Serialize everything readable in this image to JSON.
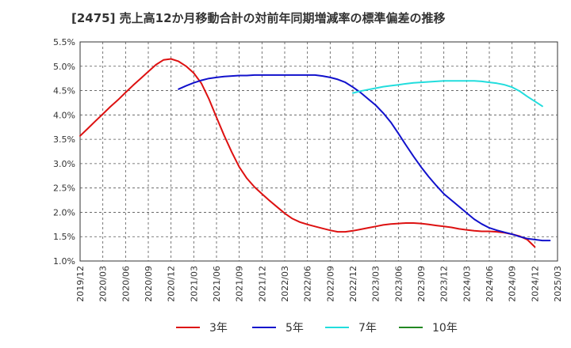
{
  "chart_data": {
    "type": "line",
    "title": "[2475]  売上高12か月移動合計の対前年同期増減率の標準偏差の推移",
    "xlabel": "",
    "ylabel": "",
    "x_ticks": [
      "2019/12",
      "2020/03",
      "2020/06",
      "2020/09",
      "2020/12",
      "2021/03",
      "2021/06",
      "2021/09",
      "2021/12",
      "2022/03",
      "2022/06",
      "2022/09",
      "2022/12",
      "2023/03",
      "2023/06",
      "2023/09",
      "2023/12",
      "2024/03",
      "2024/06",
      "2024/09",
      "2024/12",
      "2025/03"
    ],
    "y_ticks": [
      "1.0%",
      "1.5%",
      "2.0%",
      "2.5%",
      "3.0%",
      "3.5%",
      "4.0%",
      "4.5%",
      "5.0%",
      "5.5%"
    ],
    "ylim": [
      1.0,
      5.5
    ],
    "grid": true,
    "legend_position": "bottom",
    "series": [
      {
        "name": "3年",
        "color": "#dd1111",
        "points": [
          [
            "2019/12",
            3.57
          ],
          [
            "2020/01",
            3.72
          ],
          [
            "2020/02",
            3.87
          ],
          [
            "2020/03",
            4.02
          ],
          [
            "2020/04",
            4.17
          ],
          [
            "2020/05",
            4.31
          ],
          [
            "2020/06",
            4.46
          ],
          [
            "2020/07",
            4.61
          ],
          [
            "2020/08",
            4.75
          ],
          [
            "2020/09",
            4.89
          ],
          [
            "2020/10",
            5.03
          ],
          [
            "2020/11",
            5.13
          ],
          [
            "2020/12",
            5.15
          ],
          [
            "2021/01",
            5.1
          ],
          [
            "2021/02",
            5.0
          ],
          [
            "2021/03",
            4.86
          ],
          [
            "2021/04",
            4.65
          ],
          [
            "2021/05",
            4.33
          ],
          [
            "2021/06",
            3.95
          ],
          [
            "2021/07",
            3.58
          ],
          [
            "2021/08",
            3.24
          ],
          [
            "2021/09",
            2.93
          ],
          [
            "2021/10",
            2.7
          ],
          [
            "2021/11",
            2.52
          ],
          [
            "2021/12",
            2.38
          ],
          [
            "2022/01",
            2.24
          ],
          [
            "2022/02",
            2.11
          ],
          [
            "2022/03",
            1.98
          ],
          [
            "2022/04",
            1.87
          ],
          [
            "2022/05",
            1.8
          ],
          [
            "2022/06",
            1.75
          ],
          [
            "2022/07",
            1.71
          ],
          [
            "2022/08",
            1.67
          ],
          [
            "2022/09",
            1.63
          ],
          [
            "2022/10",
            1.6
          ],
          [
            "2022/11",
            1.6
          ],
          [
            "2022/12",
            1.62
          ],
          [
            "2023/01",
            1.65
          ],
          [
            "2023/02",
            1.68
          ],
          [
            "2023/03",
            1.71
          ],
          [
            "2023/04",
            1.74
          ],
          [
            "2023/05",
            1.76
          ],
          [
            "2023/06",
            1.77
          ],
          [
            "2023/07",
            1.78
          ],
          [
            "2023/08",
            1.78
          ],
          [
            "2023/09",
            1.77
          ],
          [
            "2023/10",
            1.75
          ],
          [
            "2023/11",
            1.73
          ],
          [
            "2023/12",
            1.71
          ],
          [
            "2024/01",
            1.69
          ],
          [
            "2024/02",
            1.66
          ],
          [
            "2024/03",
            1.64
          ],
          [
            "2024/04",
            1.62
          ],
          [
            "2024/05",
            1.61
          ],
          [
            "2024/06",
            1.61
          ],
          [
            "2024/07",
            1.6
          ],
          [
            "2024/08",
            1.58
          ],
          [
            "2024/09",
            1.55
          ],
          [
            "2024/10",
            1.51
          ],
          [
            "2024/11",
            1.44
          ],
          [
            "2024/12",
            1.29
          ]
        ]
      },
      {
        "name": "5年",
        "color": "#1111cc",
        "points": [
          [
            "2021/01",
            4.53
          ],
          [
            "2021/02",
            4.6
          ],
          [
            "2021/03",
            4.66
          ],
          [
            "2021/04",
            4.71
          ],
          [
            "2021/05",
            4.75
          ],
          [
            "2021/06",
            4.77
          ],
          [
            "2021/07",
            4.79
          ],
          [
            "2021/08",
            4.8
          ],
          [
            "2021/09",
            4.81
          ],
          [
            "2021/10",
            4.81
          ],
          [
            "2021/11",
            4.82
          ],
          [
            "2021/12",
            4.82
          ],
          [
            "2022/01",
            4.82
          ],
          [
            "2022/02",
            4.82
          ],
          [
            "2022/03",
            4.82
          ],
          [
            "2022/04",
            4.82
          ],
          [
            "2022/05",
            4.82
          ],
          [
            "2022/06",
            4.82
          ],
          [
            "2022/07",
            4.82
          ],
          [
            "2022/08",
            4.8
          ],
          [
            "2022/09",
            4.77
          ],
          [
            "2022/10",
            4.73
          ],
          [
            "2022/11",
            4.67
          ],
          [
            "2022/12",
            4.57
          ],
          [
            "2023/01",
            4.46
          ],
          [
            "2023/02",
            4.33
          ],
          [
            "2023/03",
            4.2
          ],
          [
            "2023/04",
            4.04
          ],
          [
            "2023/05",
            3.85
          ],
          [
            "2023/06",
            3.62
          ],
          [
            "2023/07",
            3.38
          ],
          [
            "2023/08",
            3.15
          ],
          [
            "2023/09",
            2.93
          ],
          [
            "2023/10",
            2.73
          ],
          [
            "2023/11",
            2.55
          ],
          [
            "2023/12",
            2.38
          ],
          [
            "2024/01",
            2.25
          ],
          [
            "2024/02",
            2.12
          ],
          [
            "2024/03",
            1.99
          ],
          [
            "2024/04",
            1.86
          ],
          [
            "2024/05",
            1.76
          ],
          [
            "2024/06",
            1.68
          ],
          [
            "2024/07",
            1.63
          ],
          [
            "2024/08",
            1.59
          ],
          [
            "2024/09",
            1.55
          ],
          [
            "2024/10",
            1.5
          ],
          [
            "2024/11",
            1.46
          ],
          [
            "2024/12",
            1.44
          ],
          [
            "2025/01",
            1.42
          ],
          [
            "2025/02",
            1.42
          ]
        ]
      },
      {
        "name": "7年",
        "color": "#22dddd",
        "points": [
          [
            "2022/12",
            4.45
          ],
          [
            "2023/01",
            4.49
          ],
          [
            "2023/02",
            4.52
          ],
          [
            "2023/03",
            4.55
          ],
          [
            "2023/04",
            4.58
          ],
          [
            "2023/05",
            4.6
          ],
          [
            "2023/06",
            4.62
          ],
          [
            "2023/07",
            4.64
          ],
          [
            "2023/08",
            4.66
          ],
          [
            "2023/09",
            4.67
          ],
          [
            "2023/10",
            4.68
          ],
          [
            "2023/11",
            4.69
          ],
          [
            "2023/12",
            4.7
          ],
          [
            "2024/01",
            4.7
          ],
          [
            "2024/02",
            4.7
          ],
          [
            "2024/03",
            4.7
          ],
          [
            "2024/04",
            4.7
          ],
          [
            "2024/05",
            4.69
          ],
          [
            "2024/06",
            4.67
          ],
          [
            "2024/07",
            4.65
          ],
          [
            "2024/08",
            4.62
          ],
          [
            "2024/09",
            4.57
          ],
          [
            "2024/10",
            4.49
          ],
          [
            "2024/11",
            4.38
          ],
          [
            "2024/12",
            4.28
          ],
          [
            "2025/01",
            4.18
          ]
        ]
      },
      {
        "name": "10年",
        "color": "#228822",
        "points": []
      }
    ]
  }
}
